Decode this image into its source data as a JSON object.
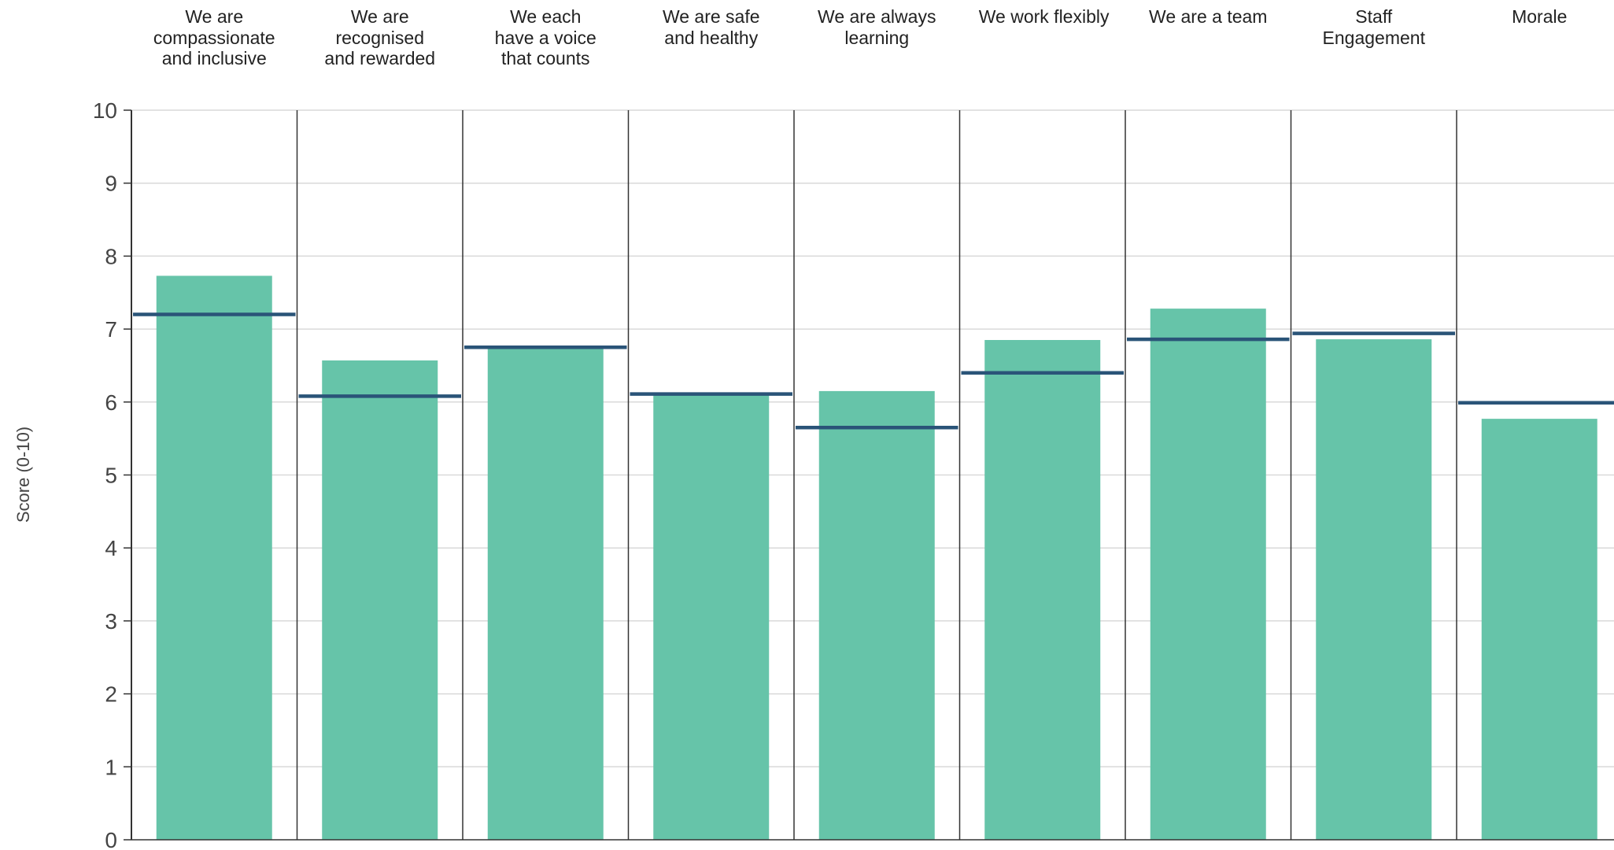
{
  "chart_data": {
    "type": "bar",
    "ylabel": "Score (0-10)",
    "ylim": [
      0,
      10
    ],
    "yticks": [
      0,
      1,
      2,
      3,
      4,
      5,
      6,
      7,
      8,
      9,
      10
    ],
    "grid": true,
    "categories": [
      "We are compassionate and inclusive",
      "We are recognised and rewarded",
      "We each have a voice that counts",
      "We are safe and healthy",
      "We are always learning",
      "We work flexibly",
      "We are a team",
      "Staff Engagement",
      "Morale"
    ],
    "category_label_lines": [
      [
        "We are",
        "compassionate",
        "and inclusive"
      ],
      [
        "We are",
        "recognised",
        "and rewarded"
      ],
      [
        "We each",
        "have a voice",
        "that counts"
      ],
      [
        "We are safe",
        "and healthy"
      ],
      [
        "We are always",
        "learning"
      ],
      [
        "We work flexibly"
      ],
      [
        "We are a team"
      ],
      [
        "Staff",
        "Engagement"
      ],
      [
        "Morale"
      ]
    ],
    "series": [
      {
        "values": [
          7.73,
          6.57,
          6.73,
          6.1,
          6.15,
          6.85,
          7.28,
          6.86,
          5.77
        ],
        "mark": "bar"
      },
      {
        "values": [
          7.2,
          6.08,
          6.75,
          6.11,
          5.65,
          6.4,
          6.86,
          6.94,
          5.99
        ],
        "mark": "line"
      }
    ],
    "colors": {
      "bar": "#66c4a9",
      "benchmark": "#2a5478",
      "grid": "#d9d9d9",
      "divider": "#333333"
    }
  }
}
